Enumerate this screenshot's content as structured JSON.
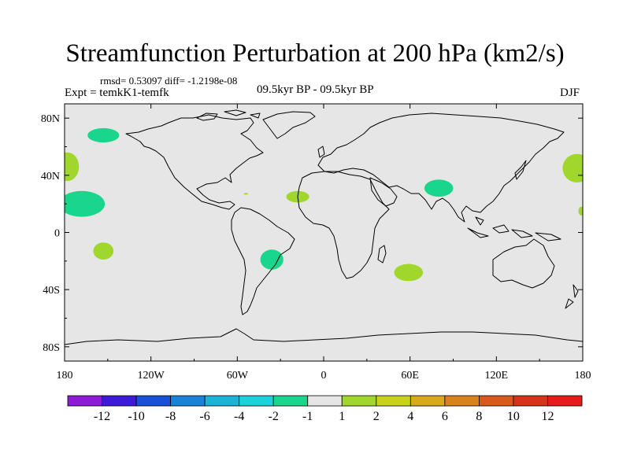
{
  "title": "Streamfunction Perturbation at 200 hPa (km2/s)",
  "stats_text": "rmsd= 0.53097 diff= -1.2198e-08",
  "experiment_label": "Expt = temkK1-temfk",
  "period_label": "09.5kyr BP - 09.5kyr BP",
  "season_label": "DJF",
  "axes": {
    "lat_ticks": [
      "80N",
      "40N",
      "0",
      "40S",
      "80S"
    ],
    "lon_ticks": [
      "180",
      "120W",
      "60W",
      "0",
      "60E",
      "120E",
      "180"
    ]
  },
  "colors": {
    "ocean_land_fill": "#e6e6e6",
    "coastline": "#000000",
    "pos_1_2": "#a0d72d",
    "neg_1_2": "#1ad68c"
  },
  "colorbar": {
    "labels": [
      "-12",
      "-10",
      "-8",
      "-6",
      "-4",
      "-2",
      "-1",
      "1",
      "2",
      "4",
      "6",
      "8",
      "10",
      "12"
    ],
    "colors": [
      "#8c1ad7",
      "#3c1ad7",
      "#1a50d7",
      "#1a82d7",
      "#1ab4d7",
      "#1ad2d7",
      "#1ad68c",
      "#e6e6e6",
      "#a0d72d",
      "#c8d21a",
      "#d7aa1a",
      "#d7821a",
      "#d75a1a",
      "#d7321a",
      "#e61a1a"
    ]
  },
  "anomalies": [
    {
      "name": "north-pacific-high-lat",
      "sign": "negative",
      "lon": -153,
      "lat": 68,
      "rlon": 11,
      "rlat": 5
    },
    {
      "name": "northwest-pacific-edge-west",
      "sign": "positive",
      "lon": -178,
      "lat": 46,
      "rlon": 8,
      "rlat": 10
    },
    {
      "name": "northeast-pacific",
      "sign": "negative",
      "lon": -168,
      "lat": 20,
      "rlon": 16,
      "rlat": 9
    },
    {
      "name": "south-pacific",
      "sign": "positive",
      "lon": -153,
      "lat": -13,
      "rlon": 7,
      "rlat": 6
    },
    {
      "name": "north-atlantic",
      "sign": "positive",
      "lon": -18,
      "lat": 25,
      "rlon": 8,
      "rlat": 4
    },
    {
      "name": "small-atlantic",
      "sign": "positive",
      "lon": -54,
      "lat": 27,
      "rlon": 1.5,
      "rlat": 0.6
    },
    {
      "name": "south-atlantic",
      "sign": "negative",
      "lon": -36,
      "lat": -19,
      "rlon": 8,
      "rlat": 7
    },
    {
      "name": "south-indian-ocean",
      "sign": "positive",
      "lon": 59,
      "lat": -28,
      "rlon": 10,
      "rlat": 6
    },
    {
      "name": "tibet",
      "sign": "negative",
      "lon": 80,
      "lat": 31,
      "rlon": 10,
      "rlat": 6
    },
    {
      "name": "northwest-pacific-edge-east",
      "sign": "positive",
      "lon": 176,
      "lat": 45,
      "rlon": 10,
      "rlat": 10
    },
    {
      "name": "west-pacific-small",
      "sign": "positive",
      "lon": 179,
      "lat": 15,
      "rlon": 2,
      "rlat": 3
    }
  ]
}
